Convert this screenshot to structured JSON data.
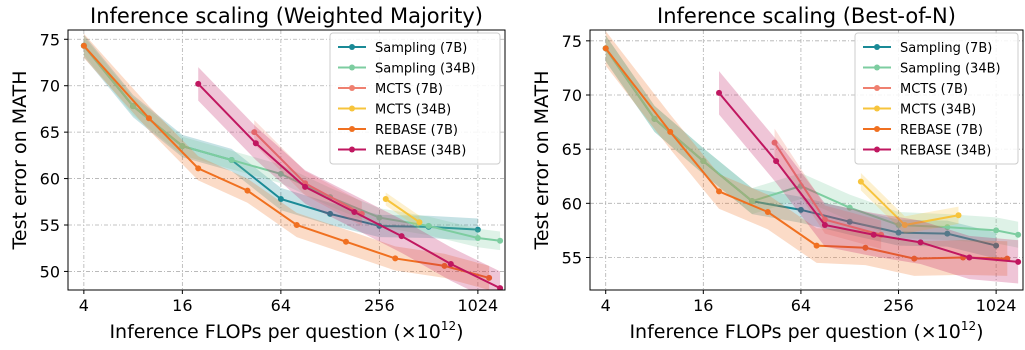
{
  "chart_data": [
    {
      "type": "line",
      "title": "Inference scaling (Weighted Majority)",
      "xlabel": "Inference FLOPs per question",
      "xlabel_unit": "(×10",
      "xlabel_exp": "12",
      "xlabel_close": ")",
      "ylabel": "Test error on MATH",
      "xscale": "log2",
      "xlim": [
        3.2,
        1500
      ],
      "ylim": [
        48,
        76
      ],
      "xticks": [
        4,
        16,
        64,
        256,
        1024
      ],
      "xtick_labels": [
        "4",
        "16",
        "64",
        "256",
        "1024"
      ],
      "yticks": [
        50,
        55,
        60,
        65,
        70,
        75
      ],
      "ytick_labels": [
        "50",
        "55",
        "60",
        "65",
        "70",
        "75"
      ],
      "grid": true,
      "legend_position": "top-right",
      "series": [
        {
          "name": "Sampling (7B)",
          "color": "#1a8a96",
          "band": 1.2,
          "x": [
            4,
            8,
            16,
            32,
            64,
            128,
            256,
            512,
            1024
          ],
          "y": [
            74.3,
            67.8,
            63.5,
            62.0,
            57.8,
            56.2,
            54.9,
            54.8,
            54.5
          ]
        },
        {
          "name": "Sampling (34B)",
          "color": "#7dcda0",
          "band": 1.0,
          "x": [
            4,
            8,
            16,
            32,
            64,
            128,
            256,
            512,
            1024,
            1400
          ],
          "y": [
            74.3,
            67.8,
            63.5,
            62.0,
            60.5,
            58.0,
            55.8,
            54.9,
            53.6,
            53.3
          ]
        },
        {
          "name": "MCTS (7B)",
          "color": "#ef8070",
          "band": 1.3,
          "x": [
            44,
            90,
            200
          ],
          "y": [
            65.0,
            59.5,
            56.2
          ]
        },
        {
          "name": "MCTS (34B)",
          "color": "#f7c43c",
          "band": 0.7,
          "x": [
            280,
            450
          ],
          "y": [
            57.8,
            55.3
          ]
        },
        {
          "name": "REBASE (7B)",
          "color": "#f07020",
          "band": 1.3,
          "x": [
            4,
            10,
            20,
            40,
            80,
            160,
            320,
            640,
            1200
          ],
          "y": [
            74.3,
            66.5,
            61.1,
            58.7,
            55.0,
            53.2,
            51.4,
            50.6,
            49.3
          ]
        },
        {
          "name": "REBASE (34B)",
          "color": "#c01760",
          "band": 1.8,
          "x": [
            20,
            45,
            90,
            180,
            350,
            700,
            1400
          ],
          "y": [
            70.2,
            63.8,
            59.1,
            56.4,
            53.8,
            50.8,
            48.2
          ]
        }
      ]
    },
    {
      "type": "line",
      "title": "Inference scaling (Best-of-N)",
      "xlabel": "Inference FLOPs per question",
      "xlabel_unit": "(×10",
      "xlabel_exp": "12",
      "xlabel_close": ")",
      "ylabel": "Test error on MATH",
      "xscale": "log2",
      "xlim": [
        3.2,
        1500
      ],
      "ylim": [
        52,
        76
      ],
      "xticks": [
        4,
        16,
        64,
        256,
        1024
      ],
      "xtick_labels": [
        "4",
        "16",
        "64",
        "256",
        "1024"
      ],
      "yticks": [
        55,
        60,
        65,
        70,
        75
      ],
      "ytick_labels": [
        "55",
        "60",
        "65",
        "70",
        "75"
      ],
      "grid": true,
      "legend_position": "top-right",
      "series": [
        {
          "name": "Sampling (7B)",
          "color": "#1a8a96",
          "band": 1.2,
          "x": [
            4,
            8,
            16,
            32,
            64,
            128,
            256,
            512,
            1024
          ],
          "y": [
            74.3,
            67.8,
            63.9,
            60.2,
            59.4,
            58.3,
            57.3,
            57.2,
            56.1
          ]
        },
        {
          "name": "Sampling (34B)",
          "color": "#7dcda0",
          "band": 1.2,
          "x": [
            4,
            8,
            16,
            32,
            64,
            128,
            256,
            512,
            1024,
            1400
          ],
          "y": [
            74.3,
            67.8,
            63.9,
            60.2,
            61.6,
            59.6,
            58.0,
            57.8,
            57.5,
            57.1
          ]
        },
        {
          "name": "MCTS (7B)",
          "color": "#ef8070",
          "band": 1.3,
          "x": [
            44,
            90,
            200
          ],
          "y": [
            65.6,
            58.5,
            57.1
          ]
        },
        {
          "name": "MCTS (34B)",
          "color": "#f7c43c",
          "band": 0.8,
          "x": [
            150,
            280,
            600
          ],
          "y": [
            62.0,
            58.0,
            58.9
          ]
        },
        {
          "name": "REBASE (7B)",
          "color": "#f07020",
          "band": 1.6,
          "x": [
            4,
            10,
            20,
            40,
            80,
            160,
            320,
            640,
            1200
          ],
          "y": [
            74.3,
            66.6,
            61.1,
            59.2,
            56.1,
            55.9,
            54.9,
            55.0,
            54.9
          ]
        },
        {
          "name": "REBASE (34B)",
          "color": "#c01760",
          "band": 2.0,
          "x": [
            20,
            45,
            90,
            180,
            350,
            700,
            1400
          ],
          "y": [
            70.2,
            63.9,
            58.0,
            57.1,
            56.4,
            55.0,
            54.6
          ]
        }
      ]
    }
  ]
}
